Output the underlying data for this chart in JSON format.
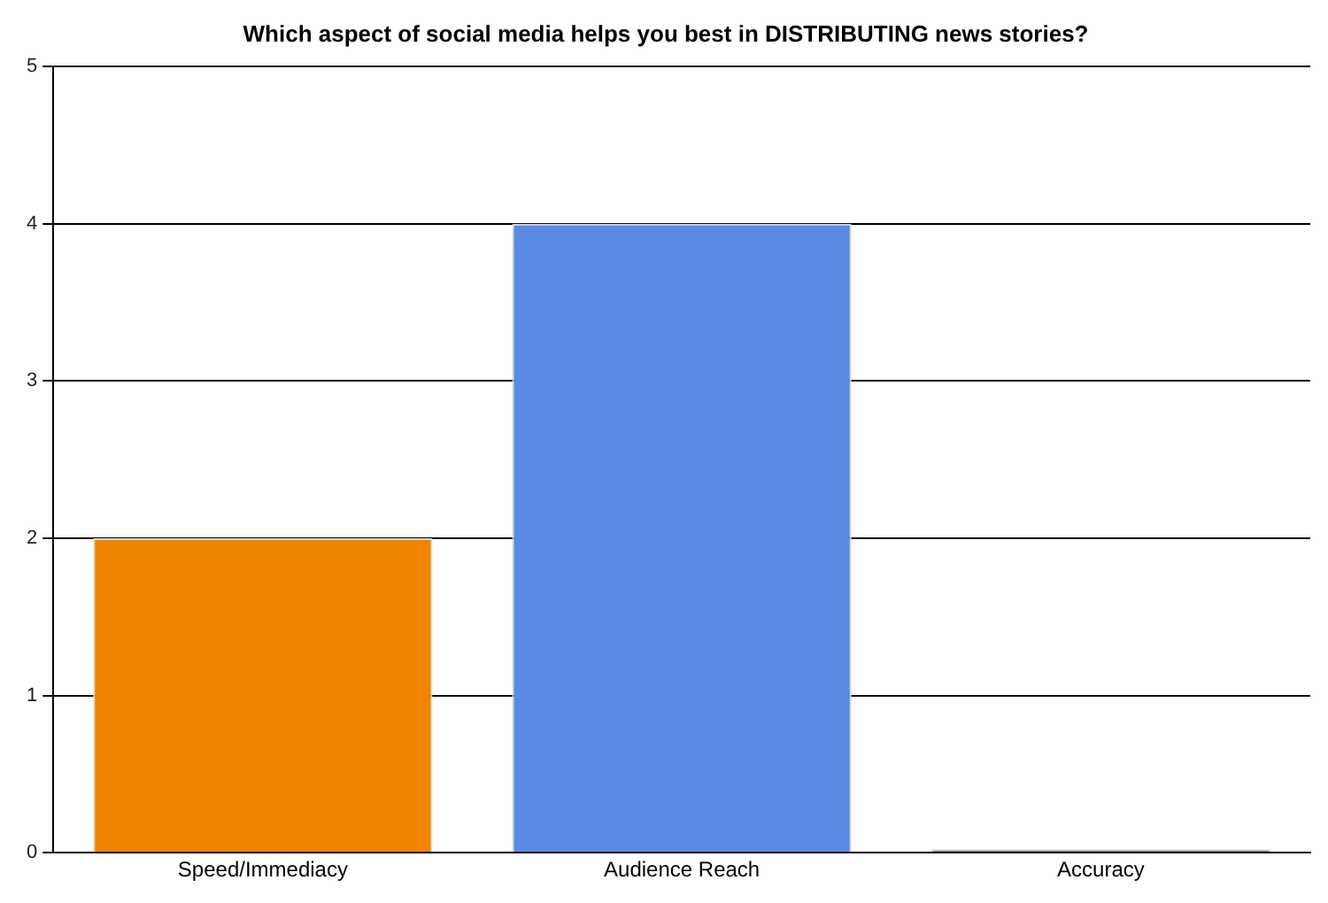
{
  "chart_data": {
    "type": "bar",
    "title": "Which aspect of social media helps you best in DISTRIBUTING news stories?",
    "categories": [
      "Speed/Immediacy",
      "Audience Reach",
      "Accuracy"
    ],
    "values": [
      2,
      4,
      0
    ],
    "colors": [
      "#ef8500",
      "#5a8ae4",
      "#8c8c8c"
    ],
    "ylim": [
      0,
      5
    ],
    "yticks": [
      0,
      1,
      2,
      3,
      4,
      5
    ],
    "grid": "y",
    "legend": false
  }
}
